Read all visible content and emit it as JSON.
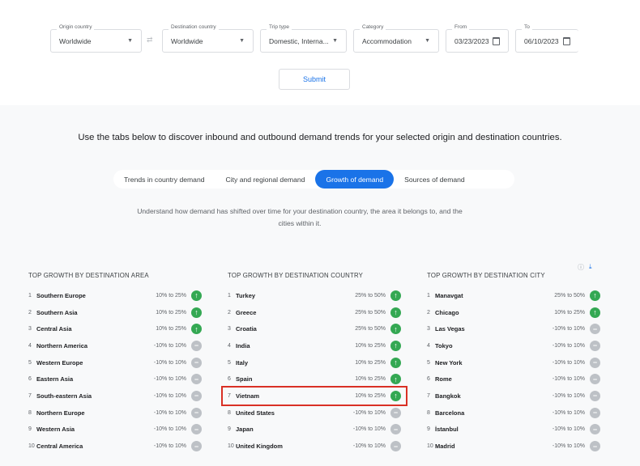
{
  "filters": {
    "origin": {
      "label": "Origin country",
      "value": "Worldwide"
    },
    "destination": {
      "label": "Destination country",
      "value": "Worldwide"
    },
    "trip_type": {
      "label": "Trip type",
      "value": "Domestic, Interna..."
    },
    "category": {
      "label": "Category",
      "value": "Accommodation"
    },
    "from": {
      "label": "From",
      "value": "03/23/2023"
    },
    "to": {
      "label": "To",
      "value": "06/10/2023"
    },
    "submit_label": "Submit"
  },
  "headline": "Use the tabs below to discover inbound and outbound demand trends for your selected origin and destination countries.",
  "tabs": [
    {
      "label": "Trends in country demand"
    },
    {
      "label": "City and regional demand"
    },
    {
      "label": "Growth of demand",
      "active": true
    },
    {
      "label": "Sources of demand"
    }
  ],
  "description": "Understand how demand has shifted over time for your destination country, the area it belongs to, and the cities within it.",
  "colors": {
    "accent": "#1a73e8",
    "up": "#34a853",
    "flat": "#bdc1c6",
    "highlight": "#d93025"
  },
  "lists": [
    {
      "title": "TOP GROWTH BY DESTINATION AREA",
      "items": [
        {
          "rank": "1",
          "name": "Southern Europe",
          "range": "10% to 25%",
          "trend": "up"
        },
        {
          "rank": "2",
          "name": "Southern Asia",
          "range": "10% to 25%",
          "trend": "up"
        },
        {
          "rank": "3",
          "name": "Central Asia",
          "range": "10% to 25%",
          "trend": "up"
        },
        {
          "rank": "4",
          "name": "Northern America",
          "range": "-10% to 10%",
          "trend": "flat"
        },
        {
          "rank": "5",
          "name": "Western Europe",
          "range": "-10% to 10%",
          "trend": "flat"
        },
        {
          "rank": "6",
          "name": "Eastern Asia",
          "range": "-10% to 10%",
          "trend": "flat"
        },
        {
          "rank": "7",
          "name": "South-eastern Asia",
          "range": "-10% to 10%",
          "trend": "flat"
        },
        {
          "rank": "8",
          "name": "Northern Europe",
          "range": "-10% to 10%",
          "trend": "flat"
        },
        {
          "rank": "9",
          "name": "Western Asia",
          "range": "-10% to 10%",
          "trend": "flat"
        },
        {
          "rank": "10",
          "name": "Central America",
          "range": "-10% to 10%",
          "trend": "flat"
        }
      ]
    },
    {
      "title": "TOP GROWTH BY DESTINATION COUNTRY",
      "items": [
        {
          "rank": "1",
          "name": "Turkey",
          "range": "25% to 50%",
          "trend": "up"
        },
        {
          "rank": "2",
          "name": "Greece",
          "range": "25% to 50%",
          "trend": "up"
        },
        {
          "rank": "3",
          "name": "Croatia",
          "range": "25% to 50%",
          "trend": "up"
        },
        {
          "rank": "4",
          "name": "India",
          "range": "10% to 25%",
          "trend": "up"
        },
        {
          "rank": "5",
          "name": "Italy",
          "range": "10% to 25%",
          "trend": "up"
        },
        {
          "rank": "6",
          "name": "Spain",
          "range": "10% to 25%",
          "trend": "up"
        },
        {
          "rank": "7",
          "name": "Vietnam",
          "range": "10% to 25%",
          "trend": "up",
          "highlighted": true
        },
        {
          "rank": "8",
          "name": "United States",
          "range": "-10% to 10%",
          "trend": "flat"
        },
        {
          "rank": "9",
          "name": "Japan",
          "range": "-10% to 10%",
          "trend": "flat"
        },
        {
          "rank": "10",
          "name": "United Kingdom",
          "range": "-10% to 10%",
          "trend": "flat"
        }
      ]
    },
    {
      "title": "TOP GROWTH BY DESTINATION CITY",
      "items": [
        {
          "rank": "1",
          "name": "Manavgat",
          "range": "25% to 50%",
          "trend": "up"
        },
        {
          "rank": "2",
          "name": "Chicago",
          "range": "10% to 25%",
          "trend": "up"
        },
        {
          "rank": "3",
          "name": "Las Vegas",
          "range": "-10% to 10%",
          "trend": "flat"
        },
        {
          "rank": "4",
          "name": "Tokyo",
          "range": "-10% to 10%",
          "trend": "flat"
        },
        {
          "rank": "5",
          "name": "New York",
          "range": "-10% to 10%",
          "trend": "flat"
        },
        {
          "rank": "6",
          "name": "Rome",
          "range": "-10% to 10%",
          "trend": "flat"
        },
        {
          "rank": "7",
          "name": "Bangkok",
          "range": "-10% to 10%",
          "trend": "flat"
        },
        {
          "rank": "8",
          "name": "Barcelona",
          "range": "-10% to 10%",
          "trend": "flat"
        },
        {
          "rank": "9",
          "name": "İstanbul",
          "range": "-10% to 10%",
          "trend": "flat"
        },
        {
          "rank": "10",
          "name": "Madrid",
          "range": "-10% to 10%",
          "trend": "flat"
        }
      ]
    }
  ]
}
